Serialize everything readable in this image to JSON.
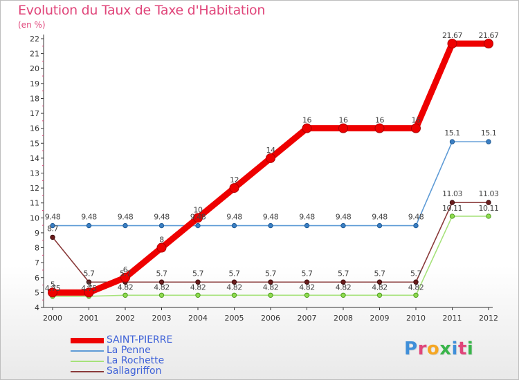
{
  "page": {
    "title": "Evolution du Taux de Taxe d'Habitation",
    "unit": "(en %)"
  },
  "logo": {
    "text": "Proxiti",
    "letter_colors": [
      "#3f8fd9",
      "#e0457a",
      "#f5a623",
      "#39b54a",
      "#3f8fd9",
      "#e0457a",
      "#39b54a"
    ]
  },
  "chart_data": {
    "type": "line",
    "title": "Evolution du Taux de Taxe d'Habitation",
    "ylabel": "(en %)",
    "xlabel": "",
    "x": [
      "2000",
      "2001",
      "2002",
      "2003",
      "2004",
      "2005",
      "2006",
      "2007",
      "2008",
      "2009",
      "2010",
      "2011",
      "2012"
    ],
    "ylim": [
      4,
      22
    ],
    "yticks": [
      4,
      5,
      6,
      7,
      8,
      9,
      10,
      11,
      12,
      13,
      14,
      15,
      16,
      17,
      18,
      19,
      20,
      21,
      22
    ],
    "grid": false,
    "legend": "bottom-left",
    "series": [
      {
        "name": "SAINT-PIERRE",
        "color": "#ee0000",
        "values": [
          5,
          5,
          6,
          8,
          10,
          12,
          14,
          16,
          16,
          16,
          16,
          21.67,
          21.67
        ],
        "labels": [
          "5",
          "5",
          "6",
          "8",
          "10",
          "12",
          "14",
          "16",
          "16",
          "16",
          "16",
          "21.67",
          "21.67"
        ]
      },
      {
        "name": "La Penne",
        "color": "#4a8fd0",
        "values": [
          9.48,
          9.48,
          9.48,
          9.48,
          9.48,
          9.48,
          9.48,
          9.48,
          9.48,
          9.48,
          9.48,
          15.1,
          15.1
        ],
        "labels": [
          "9.48",
          "9.48",
          "9.48",
          "9.48",
          "9.48",
          "9.48",
          "9.48",
          "9.48",
          "9.48",
          "9.48",
          "9.48",
          "15.1",
          "15.1"
        ]
      },
      {
        "name": "La Rochette",
        "color": "#9be36a",
        "values": [
          4.75,
          4.75,
          4.82,
          4.82,
          4.82,
          4.82,
          4.82,
          4.82,
          4.82,
          4.82,
          4.82,
          10.11,
          10.11
        ],
        "labels": [
          "4.75",
          "4.75",
          "4.82",
          "4.82",
          "4.82",
          "4.82",
          "4.82",
          "4.82",
          "4.82",
          "4.82",
          "4.82",
          "10.11",
          "10.11"
        ]
      },
      {
        "name": "Sallagriffon",
        "color": "#7a2a2a",
        "values": [
          8.7,
          5.7,
          5.7,
          5.7,
          5.7,
          5.7,
          5.7,
          5.7,
          5.7,
          5.7,
          5.7,
          11.03,
          11.03
        ],
        "labels": [
          "8.7",
          "5.7",
          "5.7",
          "5.7",
          "5.7",
          "5.7",
          "5.7",
          "5.7",
          "5.7",
          "5.7",
          "5.7",
          "11.03",
          "11.03"
        ]
      }
    ]
  }
}
